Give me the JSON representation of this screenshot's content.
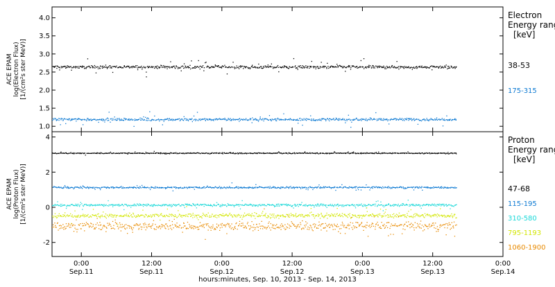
{
  "chart_data": [
    {
      "type": "scatter",
      "title": "",
      "ylabel": [
        "ACE EPAM",
        "log(Electron Flux)",
        "[1/(cm²s ster MeV)]"
      ],
      "ylim": [
        0.85,
        4.3
      ],
      "yticks": [
        "4.0",
        "3.5",
        "3.0",
        "2.5",
        "2.0",
        "1.5",
        "1.0"
      ],
      "ytick_values": [
        4.0,
        3.5,
        3.0,
        2.5,
        2.0,
        1.5,
        1.0
      ],
      "legend_title": [
        "Electron",
        "Energy ranges",
        "[keV]"
      ],
      "series": [
        {
          "name": "38-53",
          "color": "#000000",
          "level": 2.65,
          "spread": 0.06,
          "noise": 0.1,
          "points": 650
        },
        {
          "name": "175-315",
          "color": "#0a78d2",
          "level": 1.2,
          "spread": 0.05,
          "noise": 0.1,
          "points": 650
        }
      ]
    },
    {
      "type": "scatter",
      "title": "",
      "ylabel": [
        "ACE EPAM",
        "log(Proton Flux)",
        "[1/(cm²s ster MeV)]"
      ],
      "ylim": [
        -2.8,
        4.3
      ],
      "yticks": [
        "4",
        "2",
        "0",
        "-2"
      ],
      "ytick_values": [
        4,
        2,
        0,
        -2
      ],
      "legend_title": [
        "Proton",
        "Energy ranges",
        "[keV]"
      ],
      "series": [
        {
          "name": "47-68",
          "color": "#000000",
          "level": 3.1,
          "spread": 0.04,
          "noise": 0.05,
          "points": 650
        },
        {
          "name": "115-195",
          "color": "#0a78d2",
          "level": 1.15,
          "spread": 0.07,
          "noise": 0.1,
          "points": 650
        },
        {
          "name": "310-580",
          "color": "#18d8d8",
          "level": 0.15,
          "spread": 0.1,
          "noise": 0.15,
          "points": 650
        },
        {
          "name": "795-1193",
          "color": "#d2e600",
          "level": -0.45,
          "spread": 0.18,
          "noise": 0.25,
          "points": 650
        },
        {
          "name": "1060-1900",
          "color": "#e88a00",
          "level": -1.05,
          "spread": 0.35,
          "noise": 0.35,
          "points": 650
        }
      ]
    }
  ],
  "x_axis": {
    "xlim": [
      "2013-09-10T19:00",
      "2013-09-14T00:00"
    ],
    "data_end": "2013-09-13T16:00",
    "ticks": [
      {
        "time": "2013-09-11T00:00",
        "time_label": "0:00",
        "date_label": "Sep.11"
      },
      {
        "time": "2013-09-11T12:00",
        "time_label": "12:00",
        "date_label": "Sep.11"
      },
      {
        "time": "2013-09-12T00:00",
        "time_label": "0:00",
        "date_label": "Sep.12"
      },
      {
        "time": "2013-09-12T12:00",
        "time_label": "12:00",
        "date_label": "Sep.12"
      },
      {
        "time": "2013-09-13T00:00",
        "time_label": "0:00",
        "date_label": "Sep.13"
      },
      {
        "time": "2013-09-13T12:00",
        "time_label": "12:00",
        "date_label": "Sep.13"
      },
      {
        "time": "2013-09-14T00:00",
        "time_label": "0:00",
        "date_label": "Sep.14"
      }
    ],
    "label": "hours:minutes, Sep. 10, 2013 - Sep. 14, 2013"
  }
}
